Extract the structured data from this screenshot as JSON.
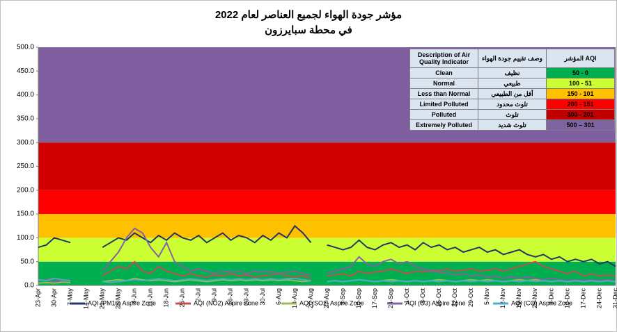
{
  "chart_data": {
    "type": "line",
    "title": "مؤشر جودة الهواء لجميع العناصر لعام 2022",
    "subtitle": "في محطة سبايرزون",
    "categories": [
      "23-Apr",
      null,
      "30-Apr",
      null,
      "7-May",
      null,
      "14-May",
      null,
      "21-May",
      null,
      "28-May",
      null,
      "4-Jun",
      null,
      "11-Jun",
      null,
      "18-Jun",
      null,
      "25-Jun",
      null,
      "2-Jul",
      null,
      "9-Jul",
      null,
      "16-Jul",
      null,
      "23-Jul",
      null,
      "30-Jul",
      null,
      "6-Aug",
      null,
      "13-Aug",
      null,
      "20-Aug",
      null,
      "27-Aug",
      null,
      "3-Sep",
      null,
      "10-Sep",
      null,
      "17-Sep",
      null,
      "24-Sep",
      null,
      "1-Oct",
      null,
      "8-Oct",
      null,
      "15-Oct",
      null,
      "22-Oct",
      null,
      "29-Oct",
      null,
      "5-Nov",
      null,
      "12-Nov",
      null,
      "19-Nov",
      null,
      "26-Nov",
      null,
      "3-Dec",
      null,
      "10-Dec",
      null,
      "17-Dec",
      null,
      "24-Dec",
      null,
      "31-Dec"
    ],
    "series": [
      {
        "name": "AQI (PM10) Aspire Zone",
        "color": "#1f3864",
        "values": [
          80,
          85,
          100,
          95,
          90,
          null,
          null,
          null,
          80,
          90,
          100,
          95,
          110,
          100,
          90,
          105,
          95,
          110,
          100,
          95,
          105,
          90,
          100,
          110,
          95,
          105,
          100,
          90,
          105,
          95,
          110,
          100,
          125,
          110,
          90,
          null,
          85,
          80,
          75,
          80,
          95,
          80,
          75,
          85,
          90,
          80,
          85,
          75,
          90,
          80,
          85,
          75,
          80,
          70,
          75,
          80,
          70,
          75,
          65,
          70,
          75,
          65,
          60,
          65,
          55,
          60,
          50,
          55,
          50,
          55,
          45,
          50,
          40
        ]
      },
      {
        "name": "AQI (NO2) Aspire Zone",
        "color": "#c0504d",
        "values": [
          10,
          12,
          15,
          10,
          12,
          null,
          null,
          null,
          20,
          30,
          40,
          35,
          50,
          30,
          25,
          40,
          30,
          25,
          20,
          25,
          20,
          18,
          22,
          20,
          25,
          20,
          22,
          18,
          20,
          22,
          25,
          20,
          18,
          20,
          15,
          null,
          20,
          22,
          25,
          20,
          30,
          25,
          28,
          30,
          35,
          30,
          25,
          30,
          28,
          32,
          30,
          35,
          30,
          32,
          35,
          30,
          32,
          35,
          30,
          35,
          40,
          45,
          50,
          40,
          35,
          30,
          25,
          30,
          20,
          25,
          20,
          22,
          20
        ]
      },
      {
        "name": "AQI (SO2) Aspire Zone",
        "color": "#9bbb59",
        "values": [
          5,
          6,
          5,
          7,
          6,
          null,
          null,
          null,
          8,
          10,
          12,
          10,
          15,
          12,
          10,
          12,
          10,
          8,
          10,
          12,
          10,
          8,
          10,
          12,
          10,
          12,
          10,
          12,
          10,
          12,
          10,
          12,
          10,
          8,
          10,
          null,
          8,
          10,
          8,
          10,
          12,
          10,
          8,
          10,
          12,
          10,
          8,
          10,
          8,
          10,
          12,
          10,
          8,
          10,
          12,
          10,
          12,
          10,
          8,
          10,
          12,
          10,
          12,
          10,
          8,
          10,
          8,
          10,
          8,
          10,
          8,
          10,
          8
        ]
      },
      {
        "name": "AQI (O3) Aspire Zone",
        "color": "#8064a2",
        "values": [
          10,
          12,
          8,
          10,
          12,
          null,
          60,
          null,
          30,
          50,
          70,
          100,
          120,
          110,
          80,
          60,
          90,
          50,
          40,
          30,
          35,
          30,
          25,
          30,
          28,
          30,
          25,
          30,
          28,
          30,
          25,
          28,
          30,
          25,
          22,
          null,
          25,
          30,
          35,
          40,
          60,
          45,
          40,
          50,
          55,
          45,
          50,
          40,
          35,
          30,
          28,
          25,
          22,
          25,
          20,
          22,
          18,
          20,
          15,
          18,
          15,
          18,
          15,
          12,
          15,
          12,
          10,
          12,
          10,
          12,
          10,
          12,
          10
        ]
      },
      {
        "name": "AQI (CO) Aspire Zone",
        "color": "#4bacc6",
        "values": [
          12,
          10,
          15,
          12,
          10,
          null,
          null,
          null,
          8,
          6,
          8,
          10,
          12,
          10,
          12,
          14,
          12,
          10,
          12,
          14,
          12,
          10,
          12,
          14,
          12,
          14,
          12,
          14,
          12,
          14,
          12,
          14,
          15,
          12,
          10,
          null,
          8,
          10,
          8,
          10,
          12,
          10,
          8,
          10,
          8,
          10,
          8,
          10,
          8,
          10,
          8,
          10,
          8,
          10,
          8,
          10,
          8,
          10,
          8,
          10,
          8,
          10,
          8,
          10,
          8,
          10,
          8,
          10,
          8,
          10,
          8,
          10,
          8
        ]
      }
    ],
    "ylim": [
      0,
      500
    ],
    "yticks": [
      {
        "value": 0,
        "label": "0.0"
      },
      {
        "value": 50,
        "label": "50.0"
      },
      {
        "value": 100,
        "label": "100.0"
      },
      {
        "value": 150,
        "label": "150.0"
      },
      {
        "value": 200,
        "label": "200.0"
      },
      {
        "value": 250,
        "label": "250.0"
      },
      {
        "value": 300,
        "label": "300.0"
      },
      {
        "value": 350,
        "label": "350.0"
      },
      {
        "value": 400,
        "label": "400.0"
      },
      {
        "value": 450,
        "label": "450.0"
      },
      {
        "value": 500,
        "label": "500.0"
      }
    ],
    "bands": [
      {
        "from": 0,
        "to": 50,
        "color": "#00b050"
      },
      {
        "from": 51,
        "to": 100,
        "color": "#ccff33"
      },
      {
        "from": 101,
        "to": 150,
        "color": "#ffc000"
      },
      {
        "from": 151,
        "to": 200,
        "color": "#ff0000"
      },
      {
        "from": 201,
        "to": 300,
        "color": "#d00000"
      },
      {
        "from": 301,
        "to": 500,
        "color": "#7f5f9f"
      }
    ],
    "legend": "bottom",
    "table": {
      "header": [
        "Description of Air Quality Indicator",
        "وصف تقييم جودة الهواء",
        "المؤشر AQI"
      ],
      "rows": [
        {
          "en": "Clean",
          "ar": "نظيف",
          "range": "50 - 0",
          "color": "#00b050"
        },
        {
          "en": "Normal",
          "ar": "طبيعي",
          "range": "100 - 51",
          "color": "#ccff33"
        },
        {
          "en": "Less than Normal",
          "ar": "أقل من الطبيعي",
          "range": "150 - 101",
          "color": "#ffc000"
        },
        {
          "en": "Limited Polluted",
          "ar": "تلوث محدود",
          "range": "200 - 151",
          "color": "#ff0000"
        },
        {
          "en": "Polluted",
          "ar": "تلوث",
          "range": "300 - 201",
          "color": "#c00000"
        },
        {
          "en": "Extremely Polluted",
          "ar": "تلوث شديد",
          "range": "500 – 301",
          "color": "#8064a2"
        }
      ]
    }
  }
}
